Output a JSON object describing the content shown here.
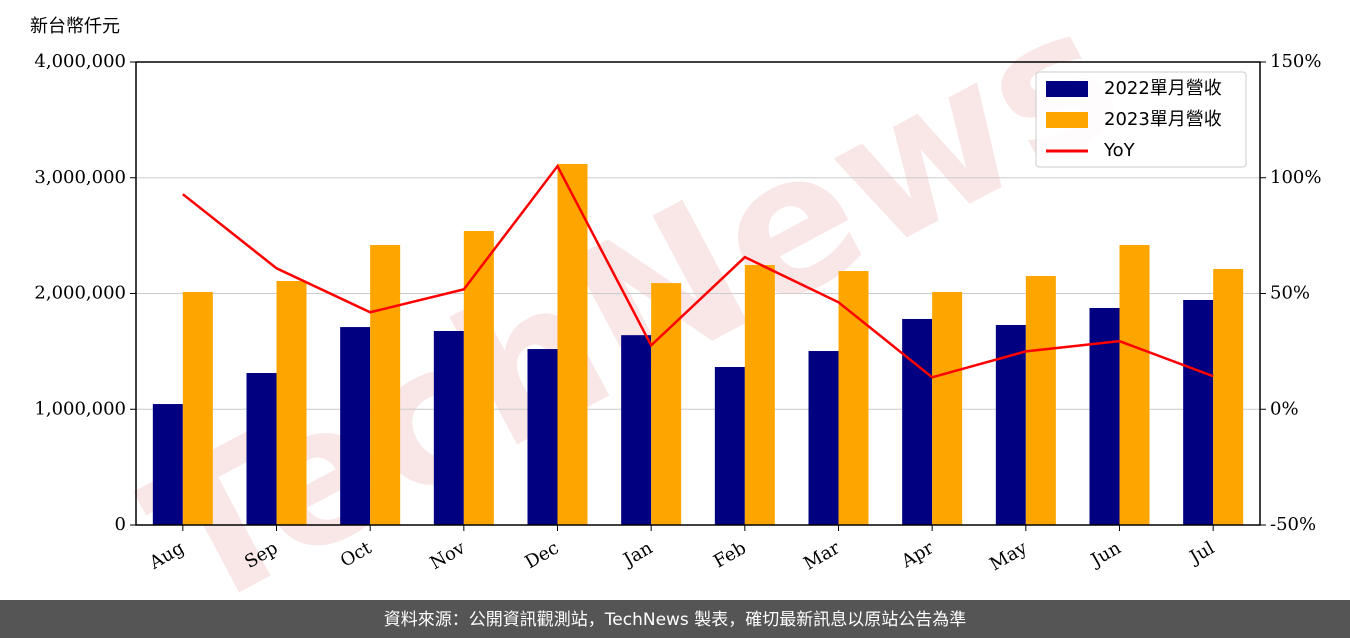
{
  "chart_data": {
    "type": "bar-line",
    "y_axis_label": "新台幣仟元",
    "watermark": "TechNews",
    "footer": "資料來源：公開資訊觀測站，TechNews 製表，確切最新訊息以原站公告為準",
    "categories": [
      "Aug",
      "Sep",
      "Oct",
      "Nov",
      "Dec",
      "Jan",
      "Feb",
      "Mar",
      "Apr",
      "May",
      "Jun",
      "Jul"
    ],
    "series": [
      {
        "name": "2022單月營收",
        "color": "#000080",
        "type": "bar",
        "values": [
          1045000,
          1313000,
          1710000,
          1676000,
          1520000,
          1640000,
          1365000,
          1503000,
          1780000,
          1728000,
          1875000,
          1944000
        ]
      },
      {
        "name": "2023單月營收",
        "color": "#ffa500",
        "type": "bar",
        "values": [
          2013000,
          2108000,
          2419000,
          2540000,
          3119000,
          2090000,
          2246000,
          2194000,
          2013000,
          2151000,
          2419000,
          2212000
        ]
      },
      {
        "name": "YoY",
        "color": "#ff0000",
        "type": "line",
        "axis": "y2",
        "values": [
          92.9,
          60.9,
          41.9,
          51.8,
          105,
          27.6,
          65.7,
          46.2,
          13.8,
          25,
          29.4,
          14.3
        ]
      }
    ],
    "ylim": [
      0,
      4000000
    ],
    "yticks": [
      0,
      {
        "value": 1000000,
        "label": "1,000,000"
      },
      {
        "value": 2000000,
        "label": "2,000,000"
      },
      {
        "value": 3000000,
        "label": "3,000,000"
      },
      {
        "value": 4000000,
        "label": "4,000,000"
      }
    ],
    "y2lim": [
      -50,
      150
    ],
    "y2ticks": [
      {
        "value": -50,
        "label": "-50%"
      },
      {
        "value": 0,
        "label": "0%"
      },
      {
        "value": 50,
        "label": "50%"
      },
      {
        "value": 100,
        "label": "100%"
      },
      {
        "value": 150,
        "label": "150%"
      }
    ],
    "grid": true,
    "legend": "upper right"
  }
}
